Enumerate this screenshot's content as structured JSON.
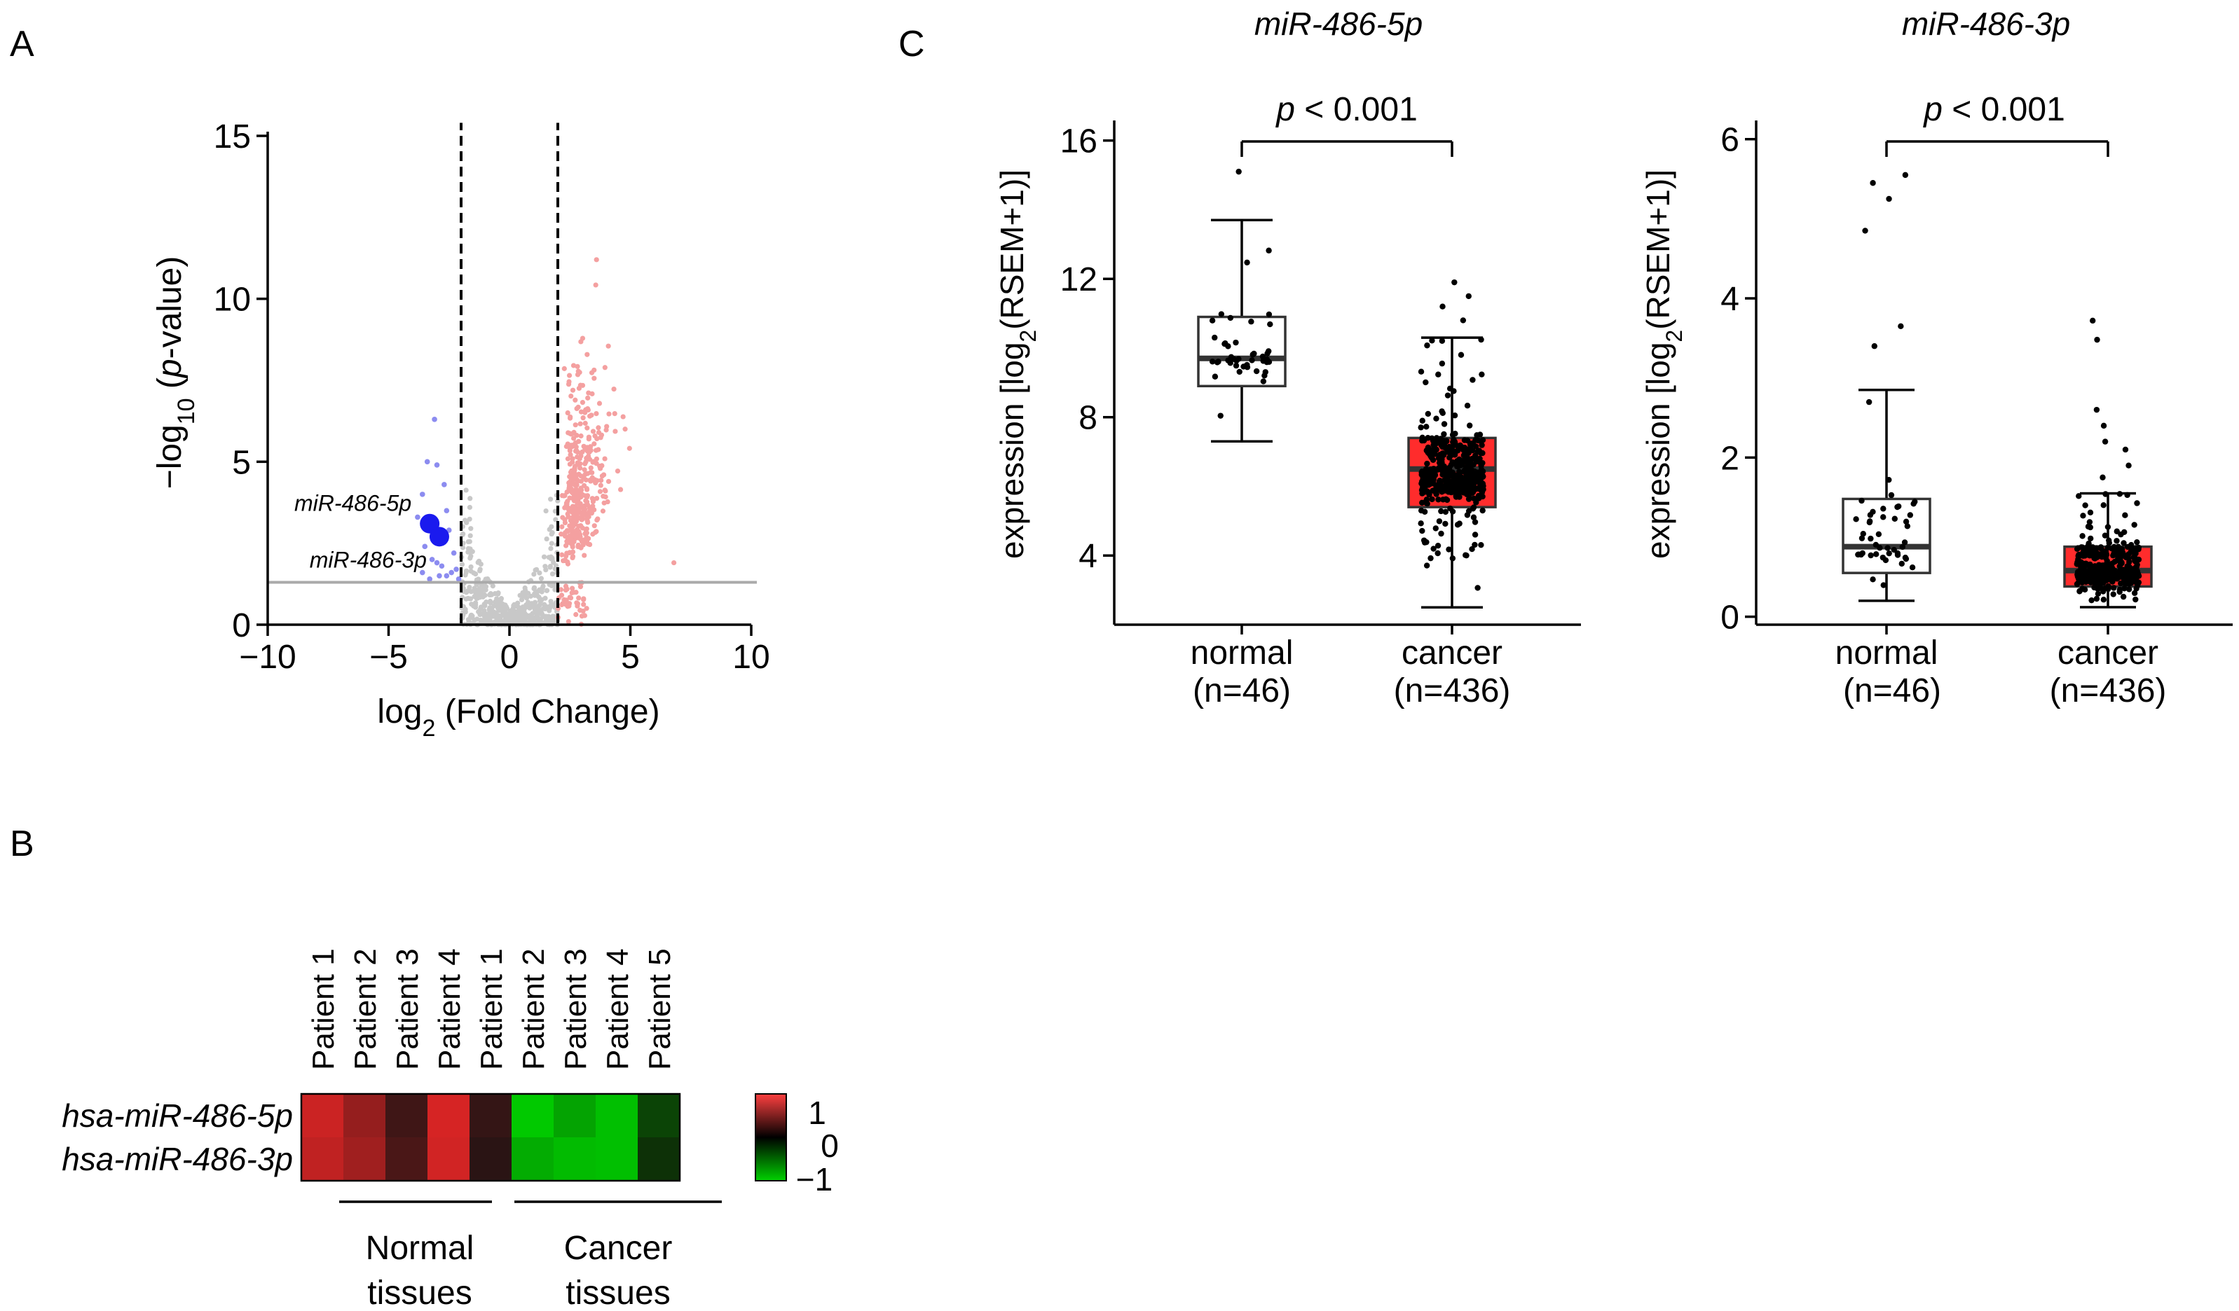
{
  "panels": {
    "a": "A",
    "b": "B",
    "c": "C"
  },
  "chart_data": [
    {
      "type": "scatter",
      "name": "volcano",
      "xlabel_main": "log",
      "xlabel_sub": "2",
      "xlabel_rest": " (Fold Change)",
      "ylabel_pre": "−log",
      "ylabel_sub": "10",
      "ylabel_open": " (",
      "ylabel_ital": "p",
      "ylabel_post": "-value)",
      "xlim": [
        -10,
        10
      ],
      "ylim": [
        0,
        15
      ],
      "xticks": [
        -10,
        -5,
        0,
        5,
        10
      ],
      "xtick_labels": [
        "−10",
        "−5",
        "0",
        "5",
        "10"
      ],
      "yticks": [
        0,
        5,
        10,
        15
      ],
      "ytick_labels": [
        "0",
        "5",
        "10",
        "15"
      ],
      "fold_thresholds": [
        -2,
        2
      ],
      "pvalue_line": 1.3,
      "colors": {
        "up": "#f4a0a0",
        "down": "#8c8cf0",
        "ns": "#c8c8c8",
        "highlight": "#1a1aee"
      },
      "highlighted": [
        {
          "label": "miR-486-5p",
          "x": -3.3,
          "y": 3.1
        },
        {
          "label": "miR-486-3p",
          "x": -2.9,
          "y": 2.7
        }
      ],
      "down_points": [
        [
          -3.1,
          6.3
        ],
        [
          -3.4,
          5.0
        ],
        [
          -3.0,
          4.9
        ],
        [
          -2.7,
          4.3
        ],
        [
          -3.6,
          4.0
        ],
        [
          -2.6,
          3.5
        ],
        [
          -3.8,
          3.3
        ],
        [
          -2.5,
          2.9
        ],
        [
          -3.5,
          2.4
        ],
        [
          -2.3,
          2.2
        ],
        [
          -3.2,
          2.0
        ],
        [
          -2.8,
          1.8
        ],
        [
          -3.6,
          1.6
        ],
        [
          -2.4,
          1.6
        ],
        [
          -2.9,
          1.5
        ],
        [
          -3.3,
          1.4
        ],
        [
          -2.6,
          1.5
        ],
        [
          -2.2,
          1.7
        ],
        [
          -3.0,
          1.9
        ],
        [
          -2.1,
          1.4
        ]
      ],
      "up_points_summary": {
        "count": 400,
        "x_range": [
          2.0,
          7.0
        ],
        "y_max": 11.2
      },
      "ns_points_summary": {
        "count": 500,
        "x_range": [
          -2.0,
          2.0
        ],
        "y_max": 5.0
      }
    },
    {
      "type": "heatmap",
      "name": "heatmap",
      "rows": [
        "hsa-miR-486-5p",
        "hsa-miR-486-3p"
      ],
      "columns": [
        "Patient 1",
        "Patient 2",
        "Patient 3",
        "Patient 4",
        "Patient 1",
        "Patient 2",
        "Patient 3",
        "Patient 4",
        "Patient 5"
      ],
      "values": [
        [
          0.85,
          0.6,
          0.2,
          0.9,
          0.15,
          -0.95,
          -0.75,
          -0.9,
          -0.25
        ],
        [
          0.8,
          0.65,
          0.25,
          0.88,
          0.1,
          -0.8,
          -0.88,
          -0.9,
          -0.15
        ]
      ],
      "groups": [
        {
          "line1": "Normal",
          "line2": "tissues",
          "columns": [
            0,
            3
          ]
        },
        {
          "line1": "Cancer",
          "line2": "tissues",
          "columns": [
            4,
            8
          ]
        }
      ],
      "scale_ticks": [
        "1",
        "0",
        "−1"
      ],
      "range": [
        -1,
        1
      ]
    },
    {
      "type": "box",
      "name": "box5p",
      "title": "miR-486-5p",
      "ylabel_pre": "expression [log",
      "ylabel_sub": "2",
      "ylabel_post": "(RSEM+1)]",
      "ylim": [
        2,
        16.5
      ],
      "yticks": [
        4,
        8,
        12,
        16
      ],
      "ytick_labels": [
        "4",
        "8",
        "12",
        "16"
      ],
      "significance": {
        "p": "p",
        "rest": " < 0.001"
      },
      "groups": [
        {
          "label": "normal",
          "n_label": "(n=46)",
          "n": 46,
          "min": 7.3,
          "q1": 8.9,
          "median": 9.7,
          "q3": 10.9,
          "max": 13.7,
          "outliers": [
            15.1
          ],
          "fill": "#ffffff"
        },
        {
          "label": "cancer",
          "n_label": "(n=436)",
          "n": 436,
          "min": 2.5,
          "q1": 5.4,
          "median": 6.5,
          "q3": 7.4,
          "max": 10.3,
          "outliers": [
            11.9,
            11.5,
            11.2,
            10.8
          ],
          "fill": "#ff1a1a"
        }
      ]
    },
    {
      "type": "box",
      "name": "box3p",
      "title": "miR-486-3p",
      "ylabel_pre": "expression [log",
      "ylabel_sub": "2",
      "ylabel_post": "(RSEM+1)]",
      "ylim": [
        -0.1,
        6.2
      ],
      "yticks": [
        0,
        2,
        4,
        6
      ],
      "ytick_labels": [
        "0",
        "2",
        "4",
        "6"
      ],
      "significance": {
        "p": "p",
        "rest": " < 0.001"
      },
      "groups": [
        {
          "label": "normal",
          "n_label": "(n=46)",
          "n": 46,
          "min": 0.2,
          "q1": 0.55,
          "median": 0.88,
          "q3": 1.48,
          "max": 2.85,
          "outliers": [
            5.55,
            5.45,
            5.25,
            4.85,
            3.65,
            3.4
          ],
          "fill": "#ffffff"
        },
        {
          "label": "cancer",
          "n_label": "(n=436)",
          "n": 436,
          "min": 0.12,
          "q1": 0.38,
          "median": 0.58,
          "q3": 0.88,
          "max": 1.55,
          "outliers": [
            3.72,
            3.48,
            2.6,
            2.4,
            2.2,
            2.1,
            1.9,
            1.75
          ],
          "fill": "#ff1a1a"
        }
      ]
    }
  ]
}
